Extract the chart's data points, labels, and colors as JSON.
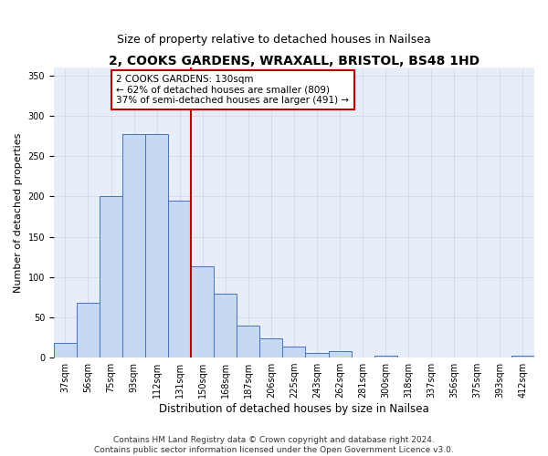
{
  "title": "2, COOKS GARDENS, WRAXALL, BRISTOL, BS48 1HD",
  "subtitle": "Size of property relative to detached houses in Nailsea",
  "xlabel": "Distribution of detached houses by size in Nailsea",
  "ylabel": "Number of detached properties",
  "categories": [
    "37sqm",
    "56sqm",
    "75sqm",
    "93sqm",
    "112sqm",
    "131sqm",
    "150sqm",
    "168sqm",
    "187sqm",
    "206sqm",
    "225sqm",
    "243sqm",
    "262sqm",
    "281sqm",
    "300sqm",
    "318sqm",
    "337sqm",
    "356sqm",
    "375sqm",
    "393sqm",
    "412sqm"
  ],
  "values": [
    18,
    68,
    200,
    277,
    277,
    195,
    113,
    79,
    40,
    24,
    14,
    6,
    8,
    0,
    2,
    0,
    0,
    0,
    0,
    0,
    2
  ],
  "bar_color": "#c6d9f0",
  "bar_edge_color": "#4472c4",
  "vline_index": 5,
  "vline_color": "#c00000",
  "annotation_line1": "2 COOKS GARDENS: 130sqm",
  "annotation_line2": "← 62% of detached houses are smaller (809)",
  "annotation_line3": "37% of semi-detached houses are larger (491) →",
  "annotation_box_color": "#ffffff",
  "annotation_box_edge_color": "#c00000",
  "ylim": [
    0,
    360
  ],
  "yticks": [
    0,
    50,
    100,
    150,
    200,
    250,
    300,
    350
  ],
  "footnote": "Contains HM Land Registry data © Crown copyright and database right 2024.\nContains public sector information licensed under the Open Government Licence v3.0.",
  "title_fontsize": 10,
  "subtitle_fontsize": 9,
  "xlabel_fontsize": 8.5,
  "ylabel_fontsize": 8,
  "tick_fontsize": 7,
  "annotation_fontsize": 7.5,
  "footnote_fontsize": 6.5
}
